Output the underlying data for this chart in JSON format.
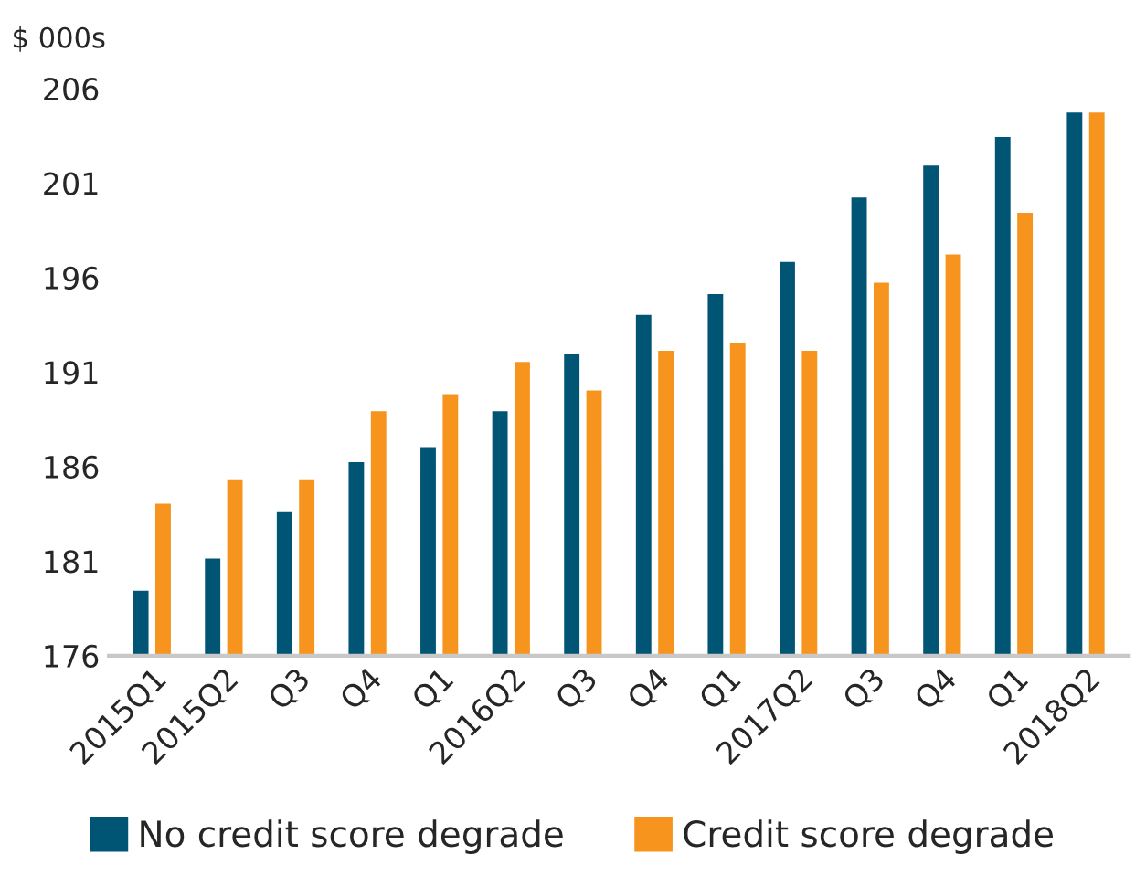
{
  "chart_data": {
    "type": "bar",
    "ylabel": "$ 000s",
    "categories": [
      "2015Q1",
      "2015Q2",
      "Q3",
      "Q4",
      "Q1",
      "2016Q2",
      "Q3",
      "Q4",
      "Q1",
      "2017Q2",
      "Q3",
      "Q4",
      "Q1",
      "2018Q2"
    ],
    "series": [
      {
        "name": "No credit score degrade",
        "color": "#005574",
        "values": [
          179.5,
          181.2,
          183.7,
          186.3,
          187.1,
          189.0,
          192.0,
          194.1,
          195.2,
          196.9,
          200.3,
          202.0,
          203.5,
          204.8
        ]
      },
      {
        "name": "Credit score degrade",
        "color": "#f7941d",
        "values": [
          184.1,
          185.4,
          185.4,
          189.0,
          189.9,
          191.6,
          190.1,
          192.2,
          192.6,
          192.2,
          195.8,
          197.3,
          199.5,
          204.8
        ]
      }
    ],
    "ylim": [
      176,
      206
    ],
    "yticks": [
      176,
      181,
      186,
      191,
      196,
      201,
      206
    ],
    "grid": false,
    "legend": "bottom"
  }
}
